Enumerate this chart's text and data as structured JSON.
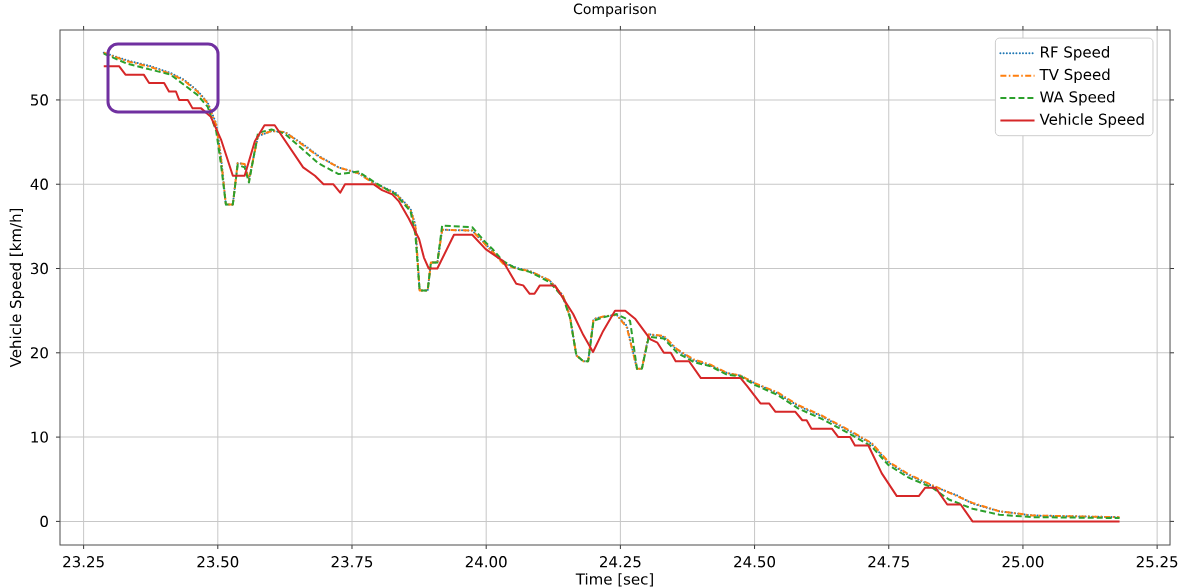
{
  "chart_data": {
    "type": "line",
    "title": "Comparison",
    "xlabel": "Time [sec]",
    "ylabel": "Vehicle Speed [km/h]",
    "xlim": [
      23.206,
      25.274
    ],
    "ylim": [
      -2.8,
      58.3
    ],
    "xticks": [
      23.25,
      {
        "value": 23.5,
        "label": "23.50"
      },
      23.75,
      {
        "value": 24.0,
        "label": "24.00"
      },
      24.25,
      {
        "value": 24.5,
        "label": "24.50"
      },
      24.75,
      {
        "value": 25.0,
        "label": "25.00"
      },
      25.25
    ],
    "yticks": [
      0,
      10,
      20,
      30,
      40,
      50
    ],
    "grid": true,
    "legend": "top right",
    "marker": "none",
    "series": [
      {
        "name": "RF Speed",
        "color": "#1f77b4",
        "line_style": "dotted",
        "x": [
          23.2875,
          23.331,
          23.375,
          23.412,
          23.437,
          23.462,
          23.481,
          23.497,
          23.506,
          23.515,
          23.528,
          23.537,
          23.55,
          23.558,
          23.575,
          23.6,
          23.625,
          23.662,
          23.687,
          23.725,
          23.762,
          23.793,
          23.831,
          23.859,
          23.868,
          23.876,
          23.891,
          23.897,
          23.909,
          23.918,
          23.974,
          23.999,
          24.012,
          24.031,
          24.056,
          24.081,
          24.118,
          24.143,
          24.156,
          24.168,
          24.181,
          24.19,
          24.2,
          24.218,
          24.243,
          24.262,
          24.281,
          24.29,
          24.303,
          24.331,
          24.356,
          24.387,
          24.418,
          24.449,
          24.474,
          24.5,
          24.543,
          24.581,
          24.624,
          24.674,
          24.718,
          24.749,
          24.787,
          24.831,
          24.877,
          24.906,
          24.956,
          25.018,
          25.18
        ],
        "values": [
          55.6,
          54.7,
          54.0,
          53.2,
          52.4,
          51.1,
          49.7,
          47.2,
          43.2,
          37.6,
          37.6,
          42.5,
          42.4,
          40.6,
          45.7,
          46.3,
          46.2,
          44.6,
          43.4,
          42.0,
          41.3,
          40.1,
          39.0,
          37.1,
          35.2,
          27.4,
          27.4,
          30.7,
          30.7,
          34.6,
          34.5,
          32.9,
          32.0,
          30.7,
          30.1,
          29.7,
          28.6,
          26.8,
          24.4,
          19.7,
          19.0,
          19.0,
          24.0,
          24.3,
          24.5,
          23.2,
          18.1,
          18.1,
          22.2,
          21.9,
          20.3,
          19.1,
          18.5,
          17.6,
          17.3,
          16.4,
          15.2,
          13.7,
          12.5,
          10.8,
          9.2,
          7.0,
          5.5,
          4.2,
          3.1,
          2.1,
          1.2,
          0.7,
          0.5
        ]
      },
      {
        "name": "TV Speed",
        "color": "#ff7f0e",
        "line_style": "dashdot",
        "x": [
          23.2875,
          23.331,
          23.375,
          23.412,
          23.437,
          23.462,
          23.481,
          23.497,
          23.506,
          23.515,
          23.528,
          23.537,
          23.55,
          23.558,
          23.575,
          23.6,
          23.625,
          23.662,
          23.687,
          23.725,
          23.762,
          23.793,
          23.831,
          23.859,
          23.868,
          23.876,
          23.891,
          23.897,
          23.909,
          23.918,
          23.974,
          23.999,
          24.012,
          24.031,
          24.056,
          24.081,
          24.118,
          24.143,
          24.156,
          24.168,
          24.181,
          24.19,
          24.2,
          24.218,
          24.243,
          24.262,
          24.281,
          24.29,
          24.303,
          24.331,
          24.356,
          24.387,
          24.418,
          24.449,
          24.474,
          24.5,
          24.543,
          24.581,
          24.624,
          24.674,
          24.718,
          24.749,
          24.787,
          24.831,
          24.877,
          24.906,
          24.956,
          25.018,
          25.18
        ],
        "values": [
          55.6,
          54.6,
          53.9,
          53.1,
          52.3,
          51.0,
          49.6,
          47.0,
          43.0,
          37.6,
          37.6,
          42.5,
          42.4,
          40.5,
          45.8,
          46.3,
          46.2,
          44.5,
          43.3,
          42.0,
          41.3,
          40.0,
          38.9,
          37.0,
          35.0,
          27.4,
          27.4,
          30.7,
          30.7,
          34.6,
          34.5,
          32.8,
          32.0,
          30.6,
          30.0,
          29.7,
          28.6,
          26.8,
          24.3,
          19.7,
          19.0,
          19.0,
          24.0,
          24.3,
          24.5,
          23.0,
          18.1,
          18.1,
          22.2,
          22.0,
          20.4,
          19.2,
          18.6,
          17.6,
          17.3,
          16.4,
          15.3,
          13.8,
          12.6,
          10.9,
          9.3,
          7.1,
          5.6,
          4.3,
          3.0,
          2.2,
          1.2,
          0.7,
          0.5
        ]
      },
      {
        "name": "WA Speed",
        "color": "#2ca02c",
        "line_style": "dashed",
        "x": [
          23.2875,
          23.331,
          23.375,
          23.412,
          23.437,
          23.462,
          23.481,
          23.497,
          23.506,
          23.515,
          23.528,
          23.537,
          23.55,
          23.558,
          23.575,
          23.6,
          23.625,
          23.662,
          23.687,
          23.725,
          23.762,
          23.793,
          23.831,
          23.859,
          23.868,
          23.876,
          23.891,
          23.897,
          23.909,
          23.918,
          23.974,
          23.999,
          24.012,
          24.031,
          24.056,
          24.081,
          24.118,
          24.143,
          24.156,
          24.168,
          24.181,
          24.19,
          24.2,
          24.218,
          24.243,
          24.268,
          24.281,
          24.29,
          24.303,
          24.331,
          24.356,
          24.387,
          24.418,
          24.449,
          24.474,
          24.5,
          24.543,
          24.581,
          24.624,
          24.674,
          24.718,
          24.749,
          24.787,
          24.831,
          24.862,
          24.906,
          24.956,
          25.018,
          25.18
        ],
        "values": [
          55.5,
          54.3,
          53.6,
          53.0,
          51.8,
          50.6,
          49.2,
          46.3,
          42.3,
          37.6,
          37.6,
          42.3,
          42.0,
          40.2,
          46.1,
          46.5,
          46.0,
          43.9,
          42.5,
          41.2,
          41.5,
          40.2,
          38.8,
          36.8,
          34.1,
          27.4,
          27.4,
          30.7,
          30.7,
          35.1,
          34.9,
          33.1,
          32.3,
          30.9,
          30.0,
          29.6,
          28.4,
          26.6,
          24.2,
          19.7,
          19.0,
          19.0,
          23.8,
          24.2,
          24.6,
          23.8,
          18.1,
          18.1,
          21.9,
          21.7,
          20.0,
          18.9,
          18.4,
          17.4,
          17.2,
          16.2,
          15.0,
          13.4,
          12.2,
          10.5,
          8.9,
          6.7,
          5.2,
          4.0,
          2.6,
          1.5,
          0.8,
          0.5,
          0.4
        ]
      },
      {
        "name": "Vehicle Speed",
        "color": "#d62728",
        "line_style": "solid",
        "x": [
          23.2875,
          23.316,
          23.328,
          23.362,
          23.372,
          23.4,
          23.409,
          23.422,
          23.428,
          23.444,
          23.453,
          23.469,
          23.487,
          23.506,
          23.528,
          23.55,
          23.569,
          23.587,
          23.606,
          23.659,
          23.681,
          23.697,
          23.715,
          23.728,
          23.737,
          23.79,
          23.806,
          23.825,
          23.837,
          23.856,
          23.875,
          23.884,
          23.893,
          23.909,
          23.94,
          23.974,
          23.999,
          24.031,
          24.056,
          24.069,
          24.081,
          24.09,
          24.1,
          24.128,
          24.162,
          24.181,
          24.199,
          24.218,
          24.24,
          24.259,
          24.278,
          24.306,
          24.319,
          24.331,
          24.344,
          24.353,
          24.378,
          24.4,
          24.474,
          24.487,
          24.511,
          24.527,
          24.539,
          24.576,
          24.589,
          24.597,
          24.606,
          24.644,
          24.656,
          24.678,
          24.687,
          24.712,
          24.737,
          24.765,
          24.806,
          24.818,
          24.837,
          24.859,
          24.884,
          24.906,
          25.18
        ],
        "values": [
          54,
          54,
          53,
          53,
          52,
          52,
          51,
          51,
          50,
          50,
          49,
          49,
          48,
          45.3,
          41,
          41,
          45.1,
          47,
          47,
          42,
          41,
          40,
          40,
          39,
          40,
          40,
          39.3,
          38.8,
          38,
          35.9,
          33.5,
          31.3,
          30,
          30,
          34,
          34,
          32.3,
          30.9,
          28.2,
          28,
          27,
          27,
          28,
          28,
          24.6,
          22.1,
          20.1,
          22.6,
          25,
          25,
          24,
          21.6,
          21.2,
          20,
          20,
          19,
          19,
          17,
          17,
          16,
          14,
          14,
          13,
          13,
          12,
          12,
          11,
          11,
          10,
          10,
          9,
          9,
          5.7,
          3,
          3,
          4,
          4,
          2,
          2,
          0,
          0
        ]
      }
    ]
  }
}
